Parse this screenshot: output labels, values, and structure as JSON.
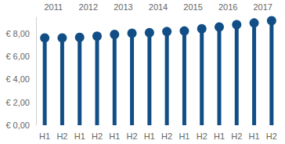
{
  "chart_data": {
    "type": "bar",
    "marker": "circle",
    "categories": [
      "H1",
      "H2",
      "H1",
      "H2",
      "H1",
      "H2",
      "H1",
      "H2",
      "H1",
      "H2",
      "H1",
      "H2",
      "H1",
      "H2"
    ],
    "groups": [
      "2011",
      "2012",
      "2013",
      "2014",
      "2015",
      "2016",
      "2017"
    ],
    "values": [
      7.6,
      7.6,
      7.65,
      7.75,
      7.9,
      8.0,
      8.05,
      8.15,
      8.2,
      8.4,
      8.55,
      8.75,
      8.9,
      9.1
    ],
    "color": "#124e86",
    "ylim": [
      0,
      9.4
    ],
    "yticks": [
      {
        "value": 0,
        "label": "€ 0,00"
      },
      {
        "value": 2,
        "label": "€ 2,00"
      },
      {
        "value": 4,
        "label": "€ 4,00"
      },
      {
        "value": 6,
        "label": "€ 6,00"
      },
      {
        "value": 8,
        "label": "€ 8,00"
      }
    ],
    "grid": false
  }
}
